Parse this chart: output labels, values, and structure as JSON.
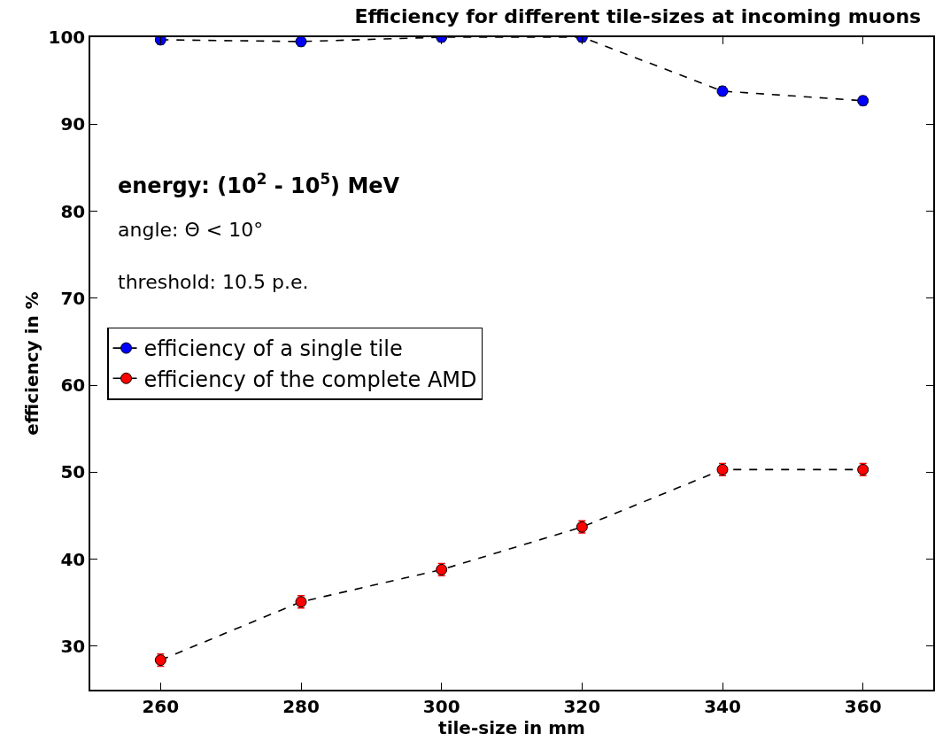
{
  "chart_data": {
    "type": "line",
    "title": "Efficiency for different tile-sizes at incoming muons",
    "xlabel": "tile-size in mm",
    "ylabel": "efficiency in %",
    "x": [
      260,
      280,
      300,
      320,
      340,
      360
    ],
    "series": [
      {
        "name": "efficiency of a single tile",
        "color": "#000000",
        "colors": [
          "#0000ff",
          "#0000ff",
          "#0000ff",
          "#0000ff",
          "#0000ff",
          "#0000ff"
        ],
        "values": [
          99.7,
          99.5,
          100,
          100,
          93.8,
          92.7
        ],
        "errors": [
          0.5,
          0.5,
          0.5,
          0.5,
          0.5,
          0.5
        ]
      },
      {
        "name": "efficiency of the complete AMD",
        "color": "#000000",
        "colors": [
          "#ff0000",
          "#ff0000",
          "#ff0000",
          "#ff0000",
          "#ff0000",
          "#ff0000"
        ],
        "values": [
          28.4,
          35.1,
          38.8,
          43.7,
          50.3,
          50.3
        ],
        "errors": [
          0.7,
          0.7,
          0.7,
          0.7,
          0.7,
          0.7
        ]
      }
    ],
    "annotations": [
      "energy: (10$^{2}$ - 10$^{5}$) MeV",
      "angle: Θ < 10°",
      "threshold: 10.5 p.e."
    ],
    "xlim": [
      250,
      370
    ],
    "xticks": [
      260,
      280,
      300,
      320,
      340,
      360
    ],
    "ylim": [
      25,
      100
    ],
    "yticks": [
      30,
      40,
      50,
      60,
      70,
      80,
      90,
      100
    ],
    "grid": false,
    "legend": "left",
    "marker": "circle",
    "line_style": "dashed"
  }
}
